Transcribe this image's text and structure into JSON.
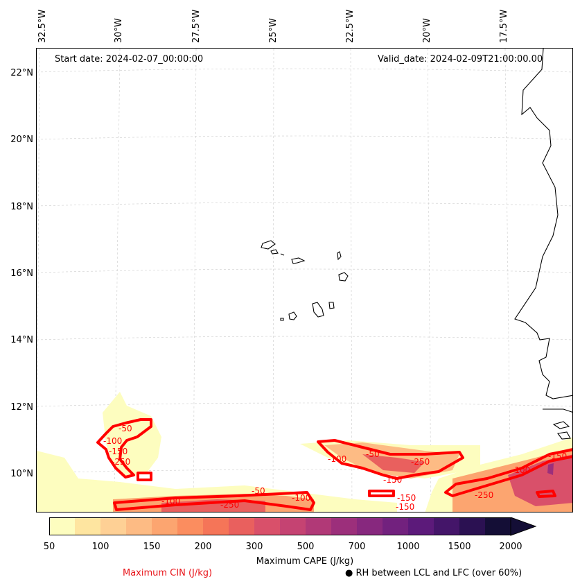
{
  "map": {
    "start_date": "Start date: 2024-02-07_00:00:00",
    "valid_date": "Valid_date: 2024-02-09T21:00:00.00",
    "lon_labels": [
      "32.5°W",
      "30°W",
      "27.5°W",
      "25°W",
      "22.5°W",
      "20°W",
      "17.5°W"
    ],
    "lat_labels": [
      "22°N",
      "20°N",
      "18°N",
      "16°N",
      "14°N",
      "12°N",
      "10°N"
    ],
    "cin_contour_labels": [
      "-50",
      "-100",
      "-150",
      "-250",
      "-50",
      "-100",
      "-150",
      "-250",
      "-100",
      "-250",
      "-50",
      "-100",
      "-150",
      "-250",
      "-100",
      "-150",
      "-150"
    ]
  },
  "colorbar": {
    "title": "Maximum CAPE (J/kg)",
    "tick_labels": [
      "50",
      "100",
      "150",
      "200",
      "300",
      "500",
      "700",
      "1000",
      "1500",
      "2000"
    ],
    "colors": [
      "#fdfdbf",
      "#fee5a0",
      "#fed095",
      "#fdbb84",
      "#fca570",
      "#fb8d5f",
      "#f57558",
      "#e9605e",
      "#d9506a",
      "#c54372",
      "#b13977",
      "#9c2f7b",
      "#87287e",
      "#72217e",
      "#5c1a7a",
      "#441569",
      "#2b1152",
      "#140e36"
    ]
  },
  "legend": {
    "cin_label": "Maximum CIN (J/kg)",
    "rh_symbol": "●",
    "rh_label": "RH between LCL and LFC (over 60%)",
    "cin_color": "#e8151a"
  }
}
